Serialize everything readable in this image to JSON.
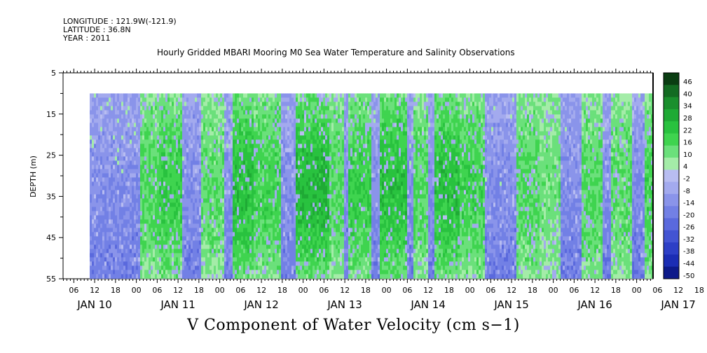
{
  "header": {
    "longitude": "LONGITUDE : 121.9W(-121.9)",
    "latitude": "LATITUDE : 36.8N",
    "year": "YEAR : 2011"
  },
  "chart_data": {
    "type": "heatmap",
    "title": "Hourly Gridded MBARI Mooring M0 Sea Water Temperature and Salinity Observations",
    "bottom_title": "V Component of Water Velocity (cm s−1)",
    "ylabel": "DEPTH (m)",
    "ylim": [
      5,
      55
    ],
    "y_reversed": true,
    "y_ticks": [
      "5",
      "15",
      "25",
      "35",
      "45",
      "55"
    ],
    "x_hour_ticks": [
      "06",
      "12",
      "18",
      "00",
      "06",
      "12",
      "18",
      "00",
      "06",
      "12",
      "18",
      "00",
      "06",
      "12",
      "18",
      "00",
      "06",
      "12",
      "18",
      "00",
      "06",
      "12",
      "18",
      "00",
      "06",
      "12",
      "18",
      "00",
      "06",
      "12",
      "18",
      "00"
    ],
    "x_day_labels": [
      "JAN 10",
      "JAN 11",
      "JAN 12",
      "JAN 13",
      "JAN 14",
      "JAN 15",
      "JAN 16",
      "JAN 17"
    ],
    "data_depth_range": [
      10,
      55
    ],
    "colorbar": {
      "labels": [
        "46",
        "40",
        "34",
        "28",
        "22",
        "16",
        "10",
        "4",
        "-2",
        "-8",
        "-14",
        "-20",
        "-26",
        "-32",
        "-38",
        "-44",
        "-50"
      ],
      "min": -50,
      "max": 50
    },
    "grid": false,
    "legend_placement": "right colorbar"
  }
}
